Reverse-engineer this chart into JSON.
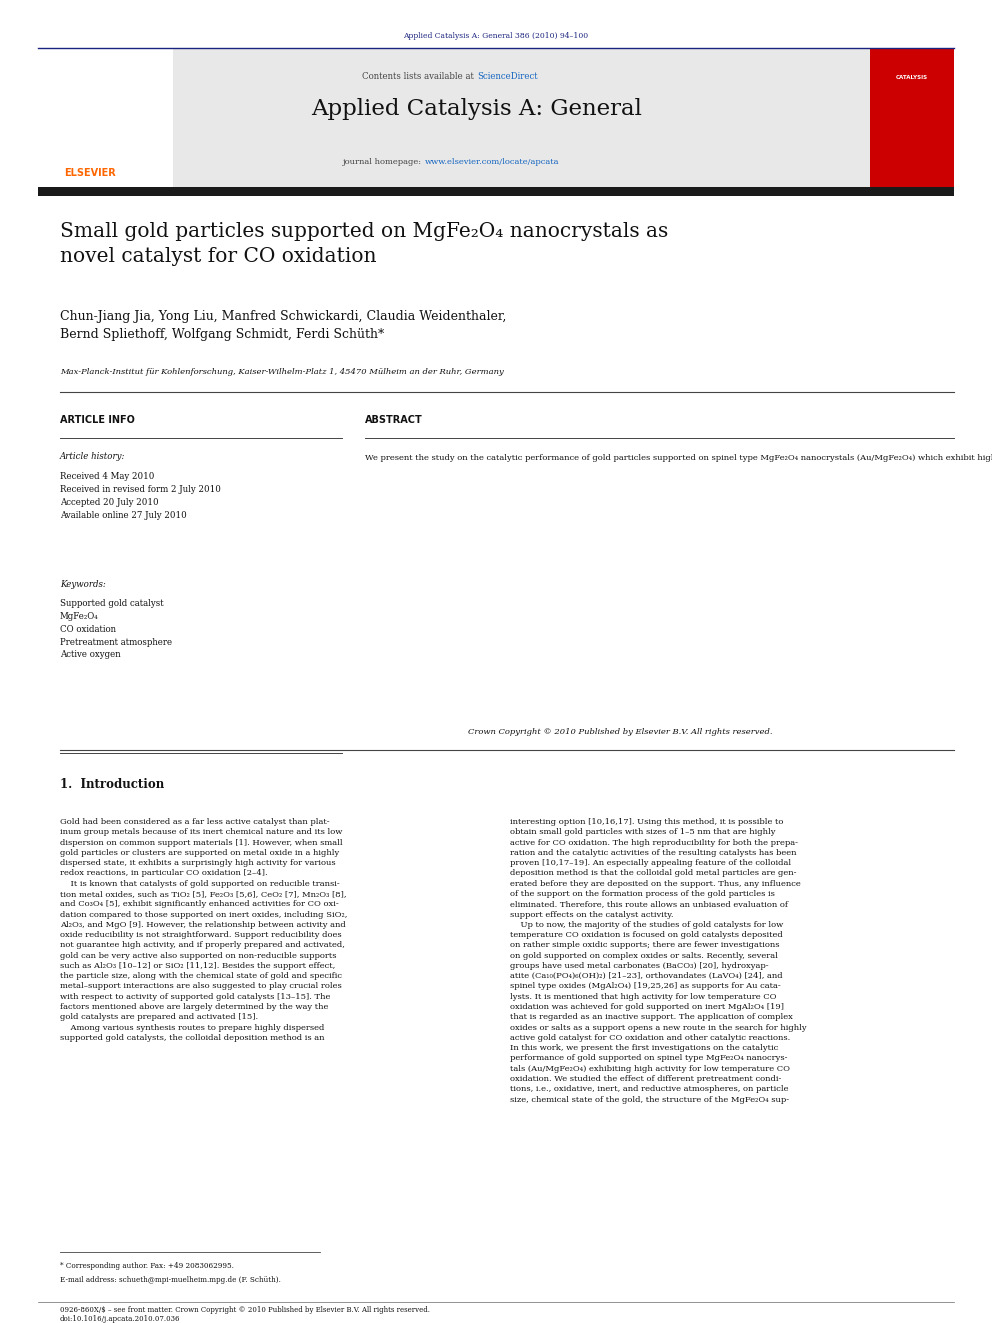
{
  "page_width": 9.92,
  "page_height": 13.23,
  "bg_color": "#ffffff",
  "header_journal_text": "Applied Catalysis A: General 386 (2010) 94–100",
  "header_journal_color": "#1a237e",
  "header_bar_color": "#1a237e",
  "journal_name": "Applied Catalysis A: General",
  "contents_text": "Contents lists available at ",
  "sciencedirect_text": "ScienceDirect",
  "sciencedirect_color": "#1565c0",
  "journal_homepage_text": "journal homepage: ",
  "journal_homepage_url": "www.elsevier.com/locate/apcata",
  "journal_url_color": "#1565c0",
  "header_bg_color": "#e8e8e8",
  "dark_bar_color": "#1a1a1a",
  "article_title": "Small gold particles supported on MgFe₂O₄ nanocrystals as\nnovel catalyst for CO oxidation",
  "authors": "Chun-Jiang Jia, Yong Liu, Manfred Schwickardi, Claudia Weidenthaler,\nBernd Spliethoff, Wolfgang Schmidt, Ferdi Schüth*",
  "affiliation": "Max-Planck-Institut für Kohlenforschung, Kaiser-Wilhelm-Platz 1, 45470 Mülheim an der Ruhr, Germany",
  "article_info_title": "ARTICLE INFO",
  "abstract_title": "ABSTRACT",
  "article_history_label": "Article history:",
  "article_history": "Received 4 May 2010\nReceived in revised form 2 July 2010\nAccepted 20 July 2010\nAvailable online 27 July 2010",
  "keywords_label": "Keywords:",
  "keywords": "Supported gold catalyst\nMgFe₂O₄\nCO oxidation\nPretreatment atmosphere\nActive oxygen",
  "abstract_text": "We present the study on the catalytic performance of gold particles supported on spinel type MgFe₂O₄ nanocrystals (Au/MgFe₂O₄) which exhibit high activity for low temperature CO oxidation. Using XRD, TEM, XPS and CO titration techniques, we investigated the effect of the pretreatment atmosphere on the structure and catalytic properties of the Au/MgFe₂O₄ catalyst in CO oxidation. TEM, XPS and XRD showed that the pretreatment atmosphere had a negligible effect on the particle size distribution, chemical states of the gold, and the structure of the support. Among the various pretreated catalysts, O₂-Au/MgFe₂O₄ exhibits superior activity, indicating that pretreatment in oxidative atmosphere induced the high capability of the catalyst to activate CO and supply active oxygen for CO oxidation as confirmed by CO titration experiments.",
  "copyright_text": "Crown Copyright © 2010 Published by Elsevier B.V. All rights reserved.",
  "section1_title": "1.  Introduction",
  "intro_col1": "Gold had been considered as a far less active catalyst than plat-\ninum group metals because of its inert chemical nature and its low\ndispersion on common support materials [1]. However, when small\ngold particles or clusters are supported on metal oxide in a highly\ndispersed state, it exhibits a surprisingly high activity for various\nredox reactions, in particular CO oxidation [2–4].\n    It is known that catalysts of gold supported on reducible transi-\ntion metal oxides, such as TiO₂ [5], Fe₂O₃ [5,6], CeO₂ [7], Mn₂O₃ [8],\nand Co₃O₄ [5], exhibit significantly enhanced activities for CO oxi-\ndation compared to those supported on inert oxides, including SiO₂,\nAl₂O₃, and MgO [9]. However, the relationship between activity and\noxide reducibility is not straightforward. Support reducibility does\nnot guarantee high activity, and if properly prepared and activated,\ngold can be very active also supported on non-reducible supports\nsuch as Al₂O₃ [10–12] or SiO₂ [11,12]. Besides the support effect,\nthe particle size, along with the chemical state of gold and specific\nmetal–support interactions are also suggested to play crucial roles\nwith respect to activity of supported gold catalysts [13–15]. The\nfactors mentioned above are largely determined by the way the\ngold catalysts are prepared and activated [15].\n    Among various synthesis routes to prepare highly dispersed\nsupported gold catalysts, the colloidal deposition method is an",
  "intro_col2": "interesting option [10,16,17]. Using this method, it is possible to\nobtain small gold particles with sizes of 1–5 nm that are highly\nactive for CO oxidation. The high reproducibility for both the prepa-\nration and the catalytic activities of the resulting catalysts has been\nproven [10,17–19]. An especially appealing feature of the colloidal\ndeposition method is that the colloidal gold metal particles are gen-\nerated before they are deposited on the support. Thus, any influence\nof the support on the formation process of the gold particles is\neliminated. Therefore, this route allows an unbiased evaluation of\nsupport effects on the catalyst activity.\n    Up to now, the majority of the studies of gold catalysts for low\ntemperature CO oxidation is focused on gold catalysts deposited\non rather simple oxidic supports; there are fewer investigations\non gold supported on complex oxides or salts. Recently, several\ngroups have used metal carbonates (BaCO₃) [20], hydroxyap-\natite (Ca₁₀(PO₄)₆(OH)₂) [21–23], orthovandates (LaVO₄) [24], and\nspinel type oxides (MgAl₂O₄) [19,25,26] as supports for Au cata-\nlysts. It is mentioned that high activity for low temperature CO\noxidation was achieved for gold supported on inert MgAl₂O₄ [19]\nthat is regarded as an inactive support. The application of complex\noxides or salts as a support opens a new route in the search for highly\nactive gold catalyst for CO oxidation and other catalytic reactions.\nIn this work, we present the first investigations on the catalytic\nperformance of gold supported on spinel type MgFe₂O₄ nanocrys-\ntals (Au/MgFe₂O₄) exhibiting high activity for low temperature CO\noxidation. We studied the effect of different pretreatment condi-\ntions, i.e., oxidative, inert, and reductive atmospheres, on particle\nsize, chemical state of the gold, the structure of the MgFe₂O₄ sup-",
  "footnote_star": "* Corresponding author. Fax: +49 2083062995.",
  "footnote_email": "E-mail address: schueth@mpi-muelheim.mpg.de (F. Schüth).",
  "footer_text": "0926-860X/$ – see front matter. Crown Copyright © 2010 Published by Elsevier B.V. All rights reserved.",
  "footer_doi": "doi:10.1016/j.apcata.2010.07.036"
}
